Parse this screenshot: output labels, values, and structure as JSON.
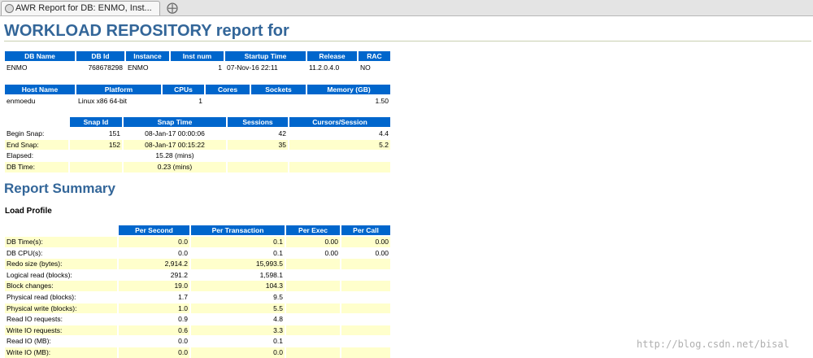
{
  "browser": {
    "tab_title": "AWR Report for DB: ENMO, Inst..."
  },
  "report": {
    "title": "WORKLOAD REPOSITORY report for",
    "db_table": {
      "headers": [
        "DB Name",
        "DB Id",
        "Instance",
        "Inst num",
        "Startup Time",
        "Release",
        "RAC"
      ],
      "rows": [
        [
          "ENMO",
          "768678298",
          "ENMO",
          "1",
          "07-Nov-16 22:11",
          "11.2.0.4.0",
          "NO"
        ]
      ]
    },
    "host_table": {
      "headers": [
        "Host Name",
        "Platform",
        "CPUs",
        "Cores",
        "Sockets",
        "Memory (GB)"
      ],
      "rows": [
        [
          "enmoedu",
          "Linux x86 64-bit",
          "1",
          null,
          null,
          "1.50"
        ]
      ]
    },
    "snap_table": {
      "headers": [
        "Snap Id",
        "Snap Time",
        "Sessions",
        "Cursors/Session"
      ],
      "rows": [
        [
          "Begin Snap:",
          "151",
          "08-Jan-17 00:00:06",
          "42",
          "4.4"
        ],
        [
          "End Snap:",
          "152",
          "08-Jan-17 00:15:22",
          "35",
          "5.2"
        ],
        [
          "Elapsed:",
          null,
          "15.28 (mins)",
          null,
          null
        ],
        [
          "DB Time:",
          null,
          "0.23 (mins)",
          null,
          null
        ]
      ]
    },
    "summary_heading": "Report Summary",
    "load_profile_heading": "Load Profile",
    "load_profile": {
      "headers": [
        "Per Second",
        "Per Transaction",
        "Per Exec",
        "Per Call"
      ],
      "rows": [
        [
          "DB Time(s):",
          "0.0",
          "0.1",
          "0.00",
          "0.00"
        ],
        [
          "DB CPU(s):",
          "0.0",
          "0.1",
          "0.00",
          "0.00"
        ],
        [
          "Redo size (bytes):",
          "2,914.2",
          "15,993.5",
          null,
          null
        ],
        [
          "Logical read (blocks):",
          "291.2",
          "1,598.1",
          null,
          null
        ],
        [
          "Block changes:",
          "19.0",
          "104.3",
          null,
          null
        ],
        [
          "Physical read (blocks):",
          "1.7",
          "9.5",
          null,
          null
        ],
        [
          "Physical write (blocks):",
          "1.0",
          "5.5",
          null,
          null
        ],
        [
          "Read IO requests:",
          "0.9",
          "4.8",
          null,
          null
        ],
        [
          "Write IO requests:",
          "0.6",
          "3.3",
          null,
          null
        ],
        [
          "Read IO (MB):",
          "0.0",
          "0.1",
          null,
          null
        ],
        [
          "Write IO (MB):",
          "0.0",
          "0.0",
          null,
          null
        ]
      ]
    }
  },
  "watermark": "http://blog.csdn.net/bisal"
}
